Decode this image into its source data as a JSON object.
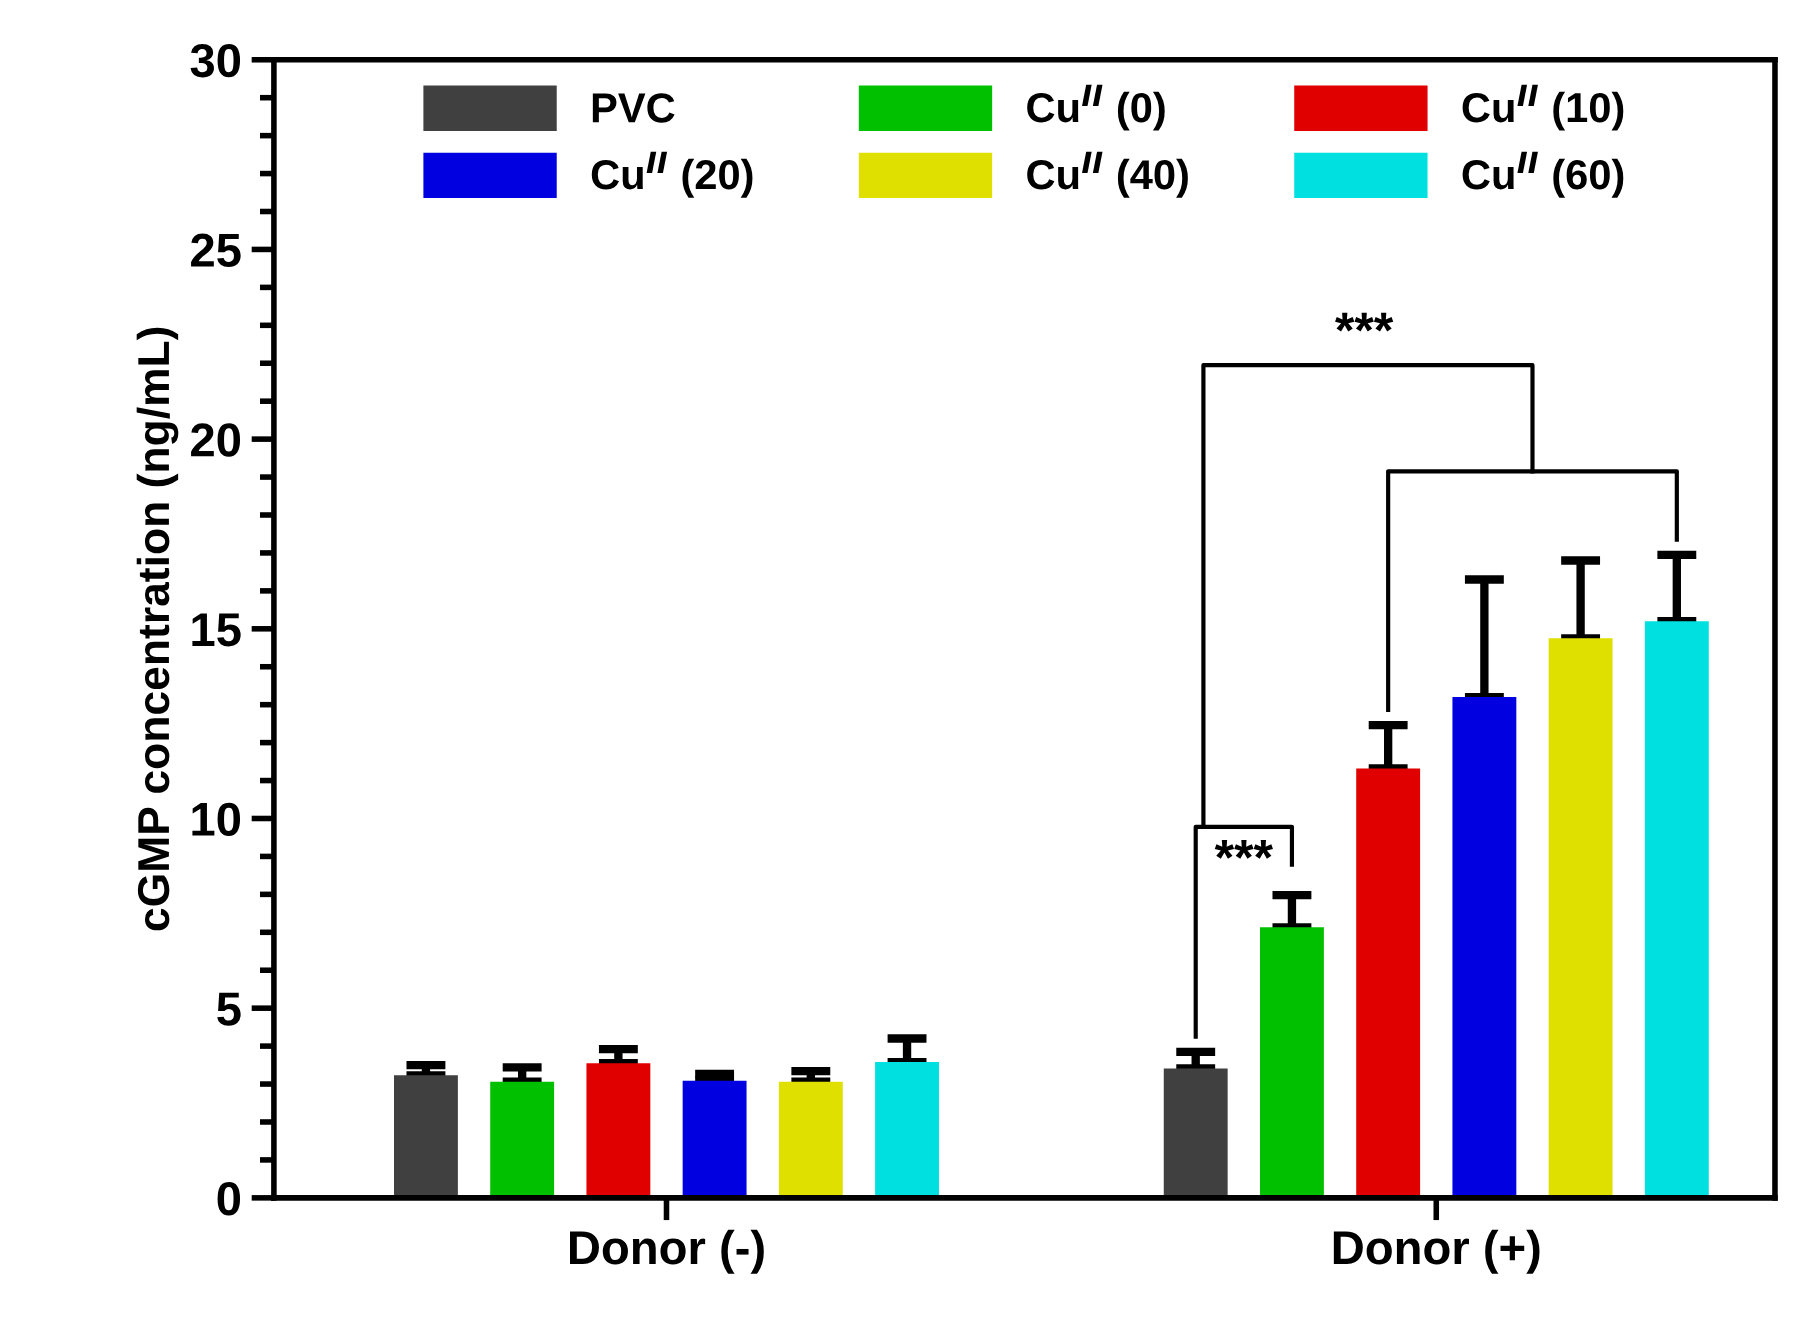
{
  "chart_data": {
    "type": "bar",
    "ylabel": "cGMP concentration (ng/mL)",
    "categories": [
      "Donor (-)",
      "Donor (+)"
    ],
    "series": [
      {
        "name": "PVC",
        "color": "#404040",
        "values": [
          3.23,
          3.41
        ],
        "errors": [
          [
            3.23,
            3.5
          ],
          [
            3.41,
            3.85
          ]
        ]
      },
      {
        "name": "Cu$^{II}$ (0)",
        "color": "#00c000",
        "values": [
          3.06,
          7.13
        ],
        "errors": [
          [
            3.06,
            3.44
          ],
          [
            7.13,
            7.98
          ]
        ]
      },
      {
        "name": "Cu$^{II}$ (10)",
        "color": "#e00000",
        "values": [
          3.55,
          11.32
        ],
        "errors": [
          [
            3.55,
            3.92
          ],
          [
            11.32,
            12.46
          ]
        ]
      },
      {
        "name": "Cu$^{II}$ (20)",
        "color": "#0000e0",
        "values": [
          3.09,
          13.2
        ],
        "errors": [
          [
            3.09,
            3.27
          ],
          [
            13.2,
            16.3
          ]
        ]
      },
      {
        "name": "Cu$^{II}$ (40)",
        "color": "#e0e000",
        "values": [
          3.06,
          14.75
        ],
        "errors": [
          [
            3.06,
            3.34
          ],
          [
            14.75,
            16.8
          ]
        ]
      },
      {
        "name": "Cu$^{II}$ (60)",
        "color": "#00e0e0",
        "values": [
          3.58,
          15.2
        ],
        "errors": [
          [
            3.58,
            4.2
          ],
          [
            15.2,
            16.95
          ]
        ]
      }
    ],
    "ylim": [
      0,
      30
    ],
    "yticks": [
      0,
      5,
      10,
      15,
      20,
      25,
      30
    ],
    "annotations": [
      "***",
      "***"
    ],
    "legend": "top",
    "grid": false
  }
}
